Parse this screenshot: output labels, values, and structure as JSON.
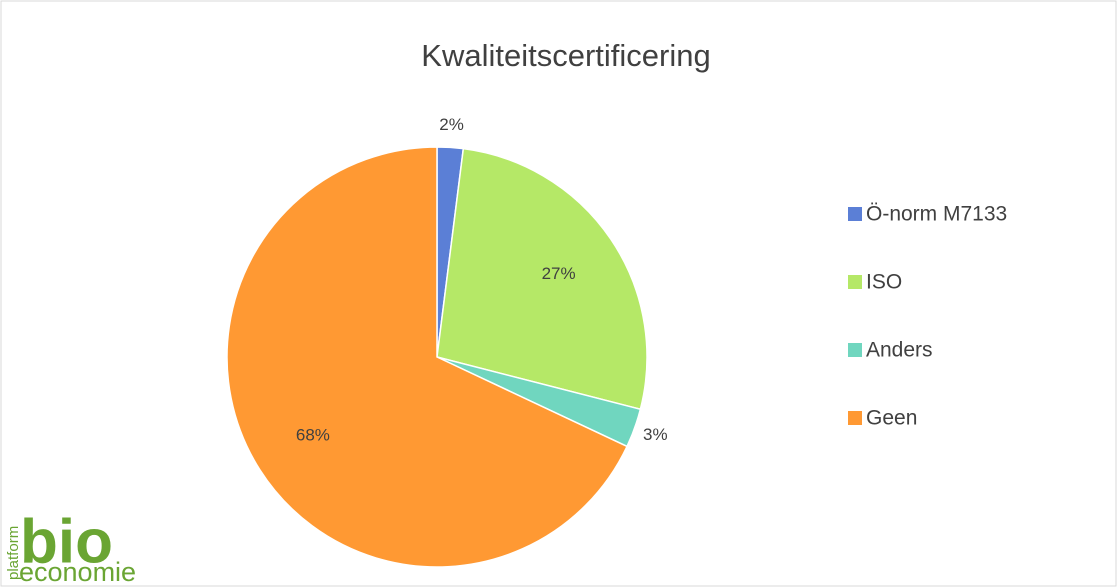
{
  "chart_data": {
    "type": "pie",
    "title": "Kwaliteitscertificering",
    "categories": [
      "Ö-norm M7133",
      "ISO",
      "Anders",
      "Geen"
    ],
    "values": [
      2,
      27,
      3,
      68
    ],
    "value_labels": [
      "2%",
      "27%",
      "3%",
      "68%"
    ],
    "colors": [
      "#5b7fd6",
      "#b5e867",
      "#70d6bf",
      "#ff9933"
    ],
    "legend": "right"
  },
  "logo": {
    "top": "platform",
    "main": "bio",
    "bottom": "economie"
  }
}
